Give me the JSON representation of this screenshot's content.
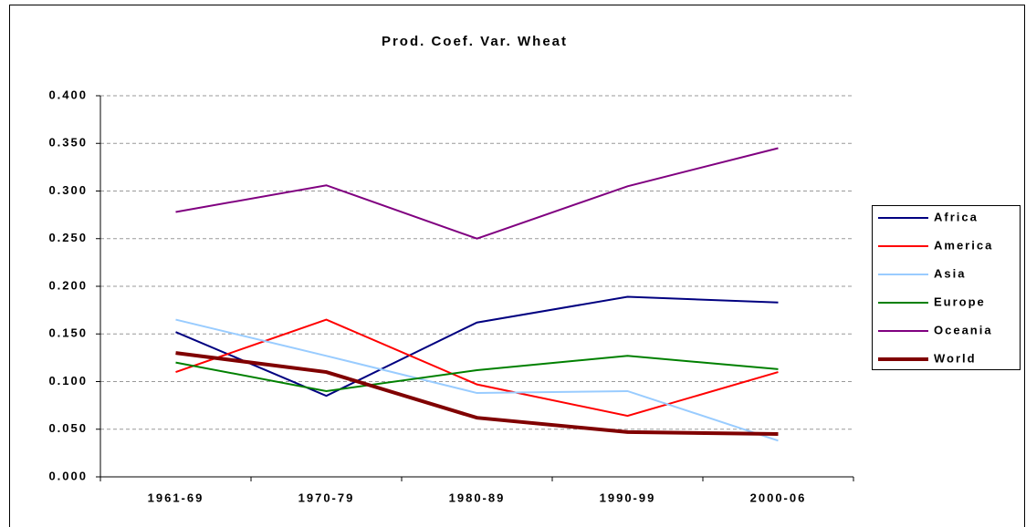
{
  "chart_data": {
    "type": "line",
    "title": "Prod. Coef. Var. Wheat",
    "categories": [
      "1961-69",
      "1970-79",
      "1980-89",
      "1990-99",
      "2000-06"
    ],
    "series": [
      {
        "name": "Africa",
        "color": "#000080",
        "values": [
          0.152,
          0.085,
          0.162,
          0.189,
          0.183
        ]
      },
      {
        "name": "America",
        "color": "#ff0000",
        "values": [
          0.11,
          0.165,
          0.097,
          0.064,
          0.11
        ]
      },
      {
        "name": "Asia",
        "color": "#99ccff",
        "values": [
          0.165,
          0.127,
          0.088,
          0.09,
          0.038
        ]
      },
      {
        "name": "Europe",
        "color": "#008000",
        "values": [
          0.12,
          0.09,
          0.112,
          0.127,
          0.113
        ]
      },
      {
        "name": "Oceania",
        "color": "#800080",
        "values": [
          0.278,
          0.306,
          0.25,
          0.305,
          0.345
        ]
      },
      {
        "name": "World",
        "color": "#800000",
        "values": [
          0.13,
          0.11,
          0.062,
          0.047,
          0.045
        ]
      }
    ],
    "ylim": [
      0,
      0.4
    ],
    "yticks": [
      {
        "value": 0,
        "label": "0.000"
      },
      {
        "value": 0.05,
        "label": "0.050"
      },
      {
        "value": 0.1,
        "label": "0.100"
      },
      {
        "value": 0.15,
        "label": "0.150"
      },
      {
        "value": 0.2,
        "label": "0.200"
      },
      {
        "value": 0.25,
        "label": "0.250"
      },
      {
        "value": 0.3,
        "label": "0.300"
      },
      {
        "value": 0.35,
        "label": "0.350"
      },
      {
        "value": 0.4,
        "label": "0.400"
      }
    ],
    "grid": true,
    "legend": "right"
  }
}
